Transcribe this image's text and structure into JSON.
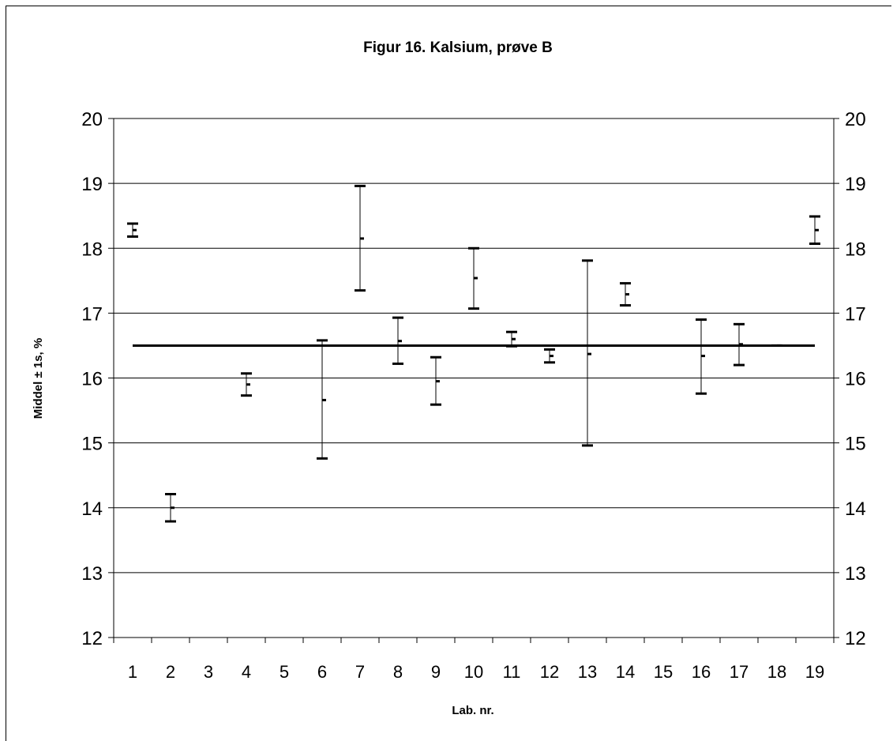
{
  "chart_data": {
    "type": "errorbar",
    "title": "Figur 16. Kalsium, prøve B",
    "xlabel": "Lab. nr.",
    "ylabel": "Middel ± 1s, %",
    "ylim": [
      12,
      20
    ],
    "yticks": [
      12,
      13,
      14,
      15,
      16,
      17,
      18,
      19,
      20
    ],
    "secondary_y_axis": true,
    "grid": "horizontal",
    "categories": [
      "1",
      "2",
      "3",
      "4",
      "5",
      "6",
      "7",
      "8",
      "9",
      "10",
      "11",
      "12",
      "13",
      "14",
      "15",
      "16",
      "17",
      "18",
      "19"
    ],
    "reference_line": 16.5,
    "points": [
      {
        "lab": "1",
        "mean": 18.28,
        "low": 18.18,
        "high": 18.38
      },
      {
        "lab": "2",
        "mean": 14.0,
        "low": 13.79,
        "high": 14.21
      },
      {
        "lab": "3",
        "mean": null,
        "low": null,
        "high": null
      },
      {
        "lab": "4",
        "mean": 15.9,
        "low": 15.73,
        "high": 16.07
      },
      {
        "lab": "5",
        "mean": null,
        "low": null,
        "high": null
      },
      {
        "lab": "6",
        "mean": 15.66,
        "low": 14.76,
        "high": 16.58
      },
      {
        "lab": "7",
        "mean": 18.15,
        "low": 17.35,
        "high": 18.96
      },
      {
        "lab": "8",
        "mean": 16.57,
        "low": 16.22,
        "high": 16.93
      },
      {
        "lab": "9",
        "mean": 15.95,
        "low": 15.59,
        "high": 16.32
      },
      {
        "lab": "10",
        "mean": 17.54,
        "low": 17.07,
        "high": 18.0
      },
      {
        "lab": "11",
        "mean": 16.6,
        "low": 16.49,
        "high": 16.71
      },
      {
        "lab": "12",
        "mean": 16.34,
        "low": 16.24,
        "high": 16.44
      },
      {
        "lab": "13",
        "mean": 16.37,
        "low": 14.96,
        "high": 17.81
      },
      {
        "lab": "14",
        "mean": 17.29,
        "low": 17.12,
        "high": 17.46
      },
      {
        "lab": "15",
        "mean": null,
        "low": null,
        "high": null
      },
      {
        "lab": "16",
        "mean": 16.34,
        "low": 15.76,
        "high": 16.9
      },
      {
        "lab": "17",
        "mean": 16.52,
        "low": 16.2,
        "high": 16.83
      },
      {
        "lab": "18",
        "mean": 16.5,
        "low": 16.5,
        "high": 16.5
      },
      {
        "lab": "19",
        "mean": 18.28,
        "low": 18.07,
        "high": 18.49
      }
    ]
  }
}
